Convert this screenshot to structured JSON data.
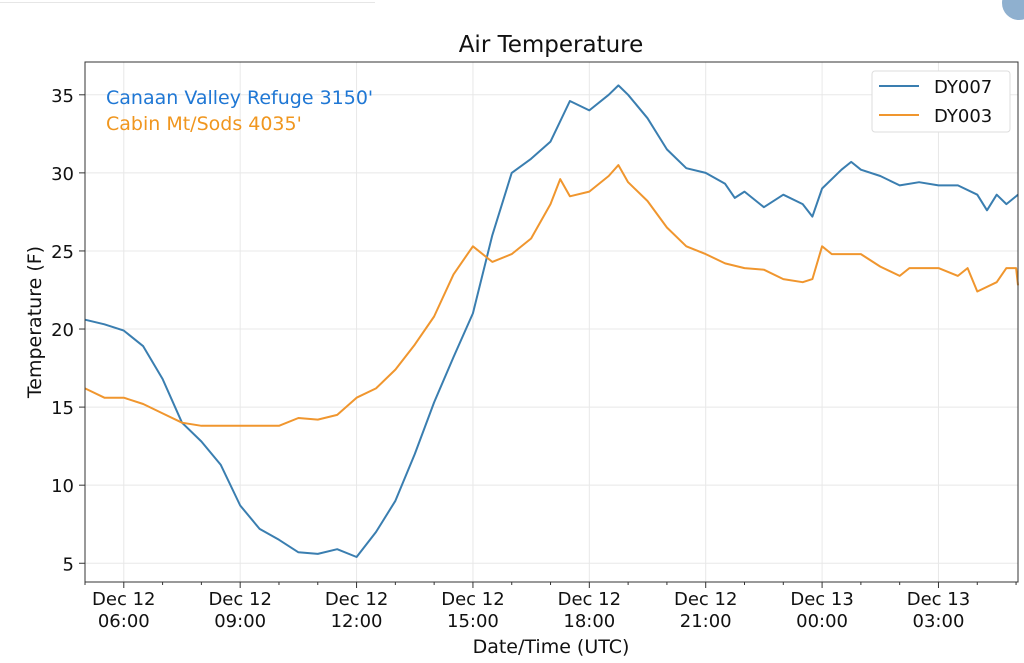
{
  "chart_data": {
    "type": "line",
    "title": "Air Temperature",
    "xlabel": "Date/Time (UTC)",
    "ylabel": "Temperature (F)",
    "x_units": "hours since Dec 12 00:00 UTC",
    "xlim": [
      5.0,
      29.05
    ],
    "ylim": [
      3.8,
      37.1
    ],
    "grid": true,
    "legend_placement": "top-right",
    "yticks": [
      5,
      10,
      15,
      20,
      25,
      30,
      35
    ],
    "xticks": [
      {
        "value": 6,
        "line1": "Dec 12",
        "line2": "06:00"
      },
      {
        "value": 9,
        "line1": "Dec 12",
        "line2": "09:00"
      },
      {
        "value": 12,
        "line1": "Dec 12",
        "line2": "12:00"
      },
      {
        "value": 15,
        "line1": "Dec 12",
        "line2": "15:00"
      },
      {
        "value": 18,
        "line1": "Dec 12",
        "line2": "18:00"
      },
      {
        "value": 21,
        "line1": "Dec 12",
        "line2": "21:00"
      },
      {
        "value": 24,
        "line1": "Dec 13",
        "line2": "00:00"
      },
      {
        "value": 27,
        "line1": "Dec 13",
        "line2": "03:00"
      }
    ],
    "annotations": [
      {
        "text": "Canaan Valley Refuge 3150'",
        "color": "#1f77d4"
      },
      {
        "text": "Cabin Mt/Sods 4035'",
        "color": "#f0961e"
      }
    ],
    "series": [
      {
        "name": "DY007",
        "color": "#3a7eb0",
        "x": [
          5.0,
          5.5,
          6.0,
          6.5,
          7.0,
          7.5,
          8.0,
          8.5,
          9.0,
          9.5,
          10.0,
          10.5,
          11.0,
          11.5,
          12.0,
          12.5,
          13.0,
          13.5,
          14.0,
          14.5,
          15.0,
          15.5,
          16.0,
          16.5,
          17.0,
          17.5,
          18.0,
          18.5,
          18.75,
          19.0,
          19.5,
          20.0,
          20.5,
          21.0,
          21.5,
          21.75,
          22.0,
          22.5,
          23.0,
          23.5,
          23.75,
          24.0,
          24.5,
          24.75,
          25.0,
          25.5,
          26.0,
          26.5,
          27.0,
          27.5,
          28.0,
          28.25,
          28.5,
          28.75,
          29.05
        ],
        "y": [
          20.6,
          20.3,
          19.9,
          18.9,
          16.8,
          14.0,
          12.8,
          11.3,
          8.7,
          7.2,
          6.5,
          5.7,
          5.6,
          5.9,
          5.4,
          7.0,
          9.0,
          12.0,
          15.3,
          18.2,
          21.0,
          26.0,
          30.0,
          30.9,
          32.0,
          34.6,
          34.0,
          35.0,
          35.6,
          35.0,
          33.5,
          31.5,
          30.3,
          30.0,
          29.3,
          28.4,
          28.8,
          27.8,
          28.6,
          28.0,
          27.2,
          29.0,
          30.2,
          30.7,
          30.2,
          29.8,
          29.2,
          29.4,
          29.2,
          29.2,
          28.6,
          27.6,
          28.6,
          28.0,
          28.6
        ]
      },
      {
        "name": "DY003",
        "color": "#f0962e",
        "x": [
          5.0,
          5.5,
          6.0,
          6.5,
          7.0,
          7.5,
          8.0,
          9.0,
          10.0,
          10.5,
          11.0,
          11.5,
          12.0,
          12.5,
          13.0,
          13.5,
          14.0,
          14.5,
          15.0,
          15.5,
          16.0,
          16.5,
          17.0,
          17.25,
          17.5,
          18.0,
          18.5,
          18.75,
          19.0,
          19.5,
          20.0,
          20.5,
          21.0,
          21.5,
          22.0,
          22.5,
          23.0,
          23.5,
          23.75,
          24.0,
          24.25,
          25.0,
          25.5,
          26.0,
          26.25,
          27.0,
          27.5,
          27.75,
          28.0,
          28.5,
          28.75,
          29.0,
          29.05
        ],
        "y": [
          16.2,
          15.6,
          15.6,
          15.2,
          14.6,
          14.0,
          13.8,
          13.8,
          13.8,
          14.3,
          14.2,
          14.5,
          15.6,
          16.2,
          17.4,
          19.0,
          20.8,
          23.5,
          25.3,
          24.3,
          24.8,
          25.8,
          28.0,
          29.6,
          28.5,
          28.8,
          29.8,
          30.5,
          29.4,
          28.2,
          26.5,
          25.3,
          24.8,
          24.2,
          23.9,
          23.8,
          23.2,
          23.0,
          23.2,
          25.3,
          24.8,
          24.8,
          24.0,
          23.4,
          23.9,
          23.9,
          23.4,
          23.9,
          22.4,
          23.0,
          23.9,
          23.9,
          22.8
        ]
      }
    ]
  }
}
